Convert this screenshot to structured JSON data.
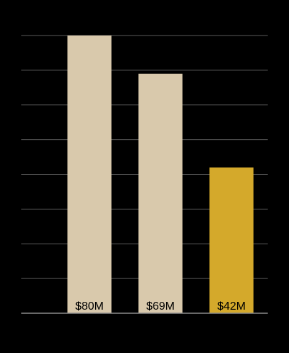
{
  "chart_data": {
    "type": "bar",
    "categories": [
      "",
      "",
      ""
    ],
    "values": [
      80,
      69,
      42
    ],
    "data_labels": [
      "$80M",
      "$69M",
      "$42M"
    ],
    "unit": "$M",
    "ylim": [
      0,
      80
    ],
    "grid": true,
    "legend": "none",
    "colors": {
      "background": "#000000",
      "bars": [
        "#d9c9ac",
        "#d9c9ac",
        "#d4a92b"
      ],
      "gridline": "#5a5a5a",
      "baseline": "#8a8a8a",
      "label_text": "#000000"
    }
  }
}
